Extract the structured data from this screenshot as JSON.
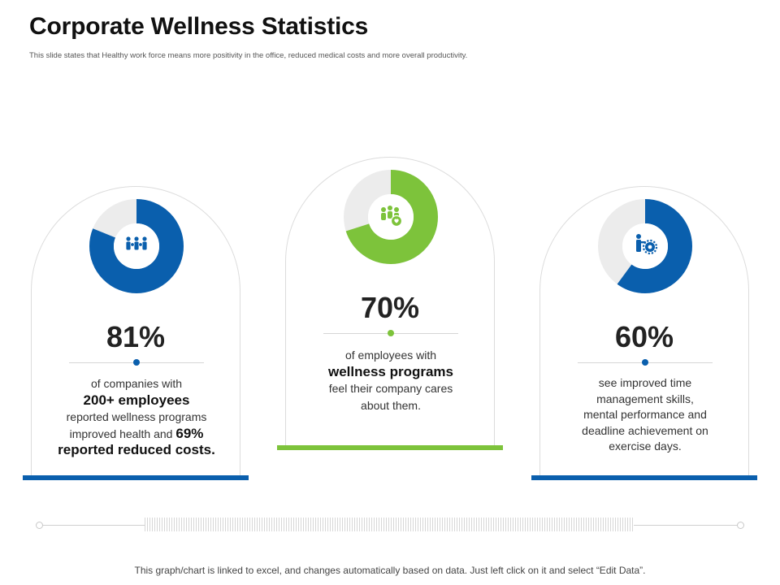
{
  "header": {
    "title": "Corporate Wellness Statistics",
    "subtitle": "This slide states that Healthy work force means more positivity in the office, reduced medical costs and more overall productivity."
  },
  "chart_data": {
    "type": "pie",
    "title": "Corporate Wellness Statistics",
    "series": [
      {
        "name": "companies",
        "value": 81,
        "label": "81%",
        "color": "#0a5fad",
        "icon": "people-group-icon",
        "lines": [
          "of companies with",
          "200+ employees",
          "reported wellness programs",
          "improved health and ",
          "69%",
          "reported reduced costs."
        ]
      },
      {
        "name": "employees",
        "value": 70,
        "label": "70%",
        "color": "#7dc33b",
        "icon": "team-heart-icon",
        "lines": [
          "of employees with",
          "wellness programs",
          "feel their company cares",
          "about them."
        ]
      },
      {
        "name": "exercise",
        "value": 60,
        "label": "60%",
        "color": "#0a5fad",
        "icon": "person-gear-icon",
        "lines": [
          "see improved time",
          "management skills,",
          "mental performance and",
          "deadline achievement on",
          "exercise days."
        ]
      }
    ],
    "track_color": "#ececec"
  },
  "footer": {
    "note": "This graph/chart is linked to excel, and changes automatically based on data. Just left click on it and select “Edit Data”."
  }
}
